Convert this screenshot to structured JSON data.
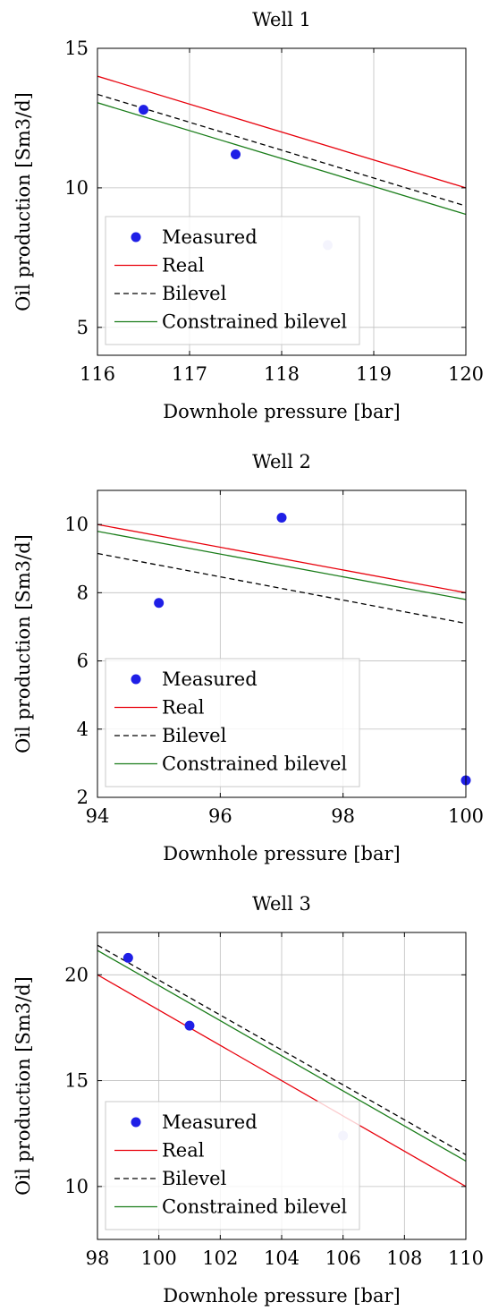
{
  "chart_data": [
    {
      "type": "line",
      "title": "Well 1",
      "xlabel": "Downhole pressure [bar]",
      "ylabel": "Oil production [Sm3/d]",
      "xlim": [
        116,
        120
      ],
      "ylim": [
        4,
        15
      ],
      "xticks": [
        116,
        117,
        118,
        119,
        120
      ],
      "yticks": [
        5,
        10,
        15
      ],
      "grid": true,
      "legend_position": "bottom-left",
      "measured": {
        "name": "Measured",
        "points": [
          {
            "x": 116.5,
            "y": 12.8,
            "faded": false
          },
          {
            "x": 117.5,
            "y": 11.2,
            "faded": false
          },
          {
            "x": 118.5,
            "y": 7.95,
            "faded": true
          }
        ]
      },
      "series": [
        {
          "name": "Real",
          "style": "solid",
          "color": "#e8000b",
          "x": [
            116,
            120
          ],
          "y": [
            14.0,
            10.0
          ]
        },
        {
          "name": "Bilevel",
          "style": "dashed",
          "color": "#000000",
          "x": [
            116,
            120
          ],
          "y": [
            13.35,
            9.35
          ]
        },
        {
          "name": "Constrained bilevel",
          "style": "solid",
          "color": "#1a7d1a",
          "x": [
            116,
            120
          ],
          "y": [
            13.05,
            9.05
          ]
        }
      ]
    },
    {
      "type": "line",
      "title": "Well 2",
      "xlabel": "Downhole pressure [bar]",
      "ylabel": "Oil production [Sm3/d]",
      "xlim": [
        94,
        100
      ],
      "ylim": [
        2,
        11
      ],
      "xticks": [
        94,
        96,
        98,
        100
      ],
      "yticks": [
        2,
        4,
        6,
        8,
        10
      ],
      "grid": true,
      "legend_position": "bottom-left",
      "measured": {
        "name": "Measured",
        "points": [
          {
            "x": 95,
            "y": 7.7,
            "faded": false
          },
          {
            "x": 97,
            "y": 10.2,
            "faded": false
          },
          {
            "x": 100,
            "y": 2.5,
            "faded": false
          }
        ]
      },
      "series": [
        {
          "name": "Real",
          "style": "solid",
          "color": "#e8000b",
          "x": [
            94,
            100
          ],
          "y": [
            10.0,
            8.0
          ]
        },
        {
          "name": "Bilevel",
          "style": "dashed",
          "color": "#000000",
          "x": [
            94,
            100
          ],
          "y": [
            9.15,
            7.1
          ]
        },
        {
          "name": "Constrained bilevel",
          "style": "solid",
          "color": "#1a7d1a",
          "x": [
            94,
            100
          ],
          "y": [
            9.8,
            7.8
          ]
        }
      ]
    },
    {
      "type": "line",
      "title": "Well 3",
      "xlabel": "Downhole pressure [bar]",
      "ylabel": "Oil production [Sm3/d]",
      "xlim": [
        98,
        110
      ],
      "ylim": [
        7.5,
        22
      ],
      "xticks": [
        98,
        100,
        102,
        104,
        106,
        108,
        110
      ],
      "yticks": [
        10,
        15,
        20
      ],
      "grid": true,
      "legend_position": "bottom-left",
      "measured": {
        "name": "Measured",
        "points": [
          {
            "x": 99,
            "y": 20.8,
            "faded": false
          },
          {
            "x": 101,
            "y": 17.6,
            "faded": false
          },
          {
            "x": 106,
            "y": 12.4,
            "faded": true
          }
        ]
      },
      "series": [
        {
          "name": "Real",
          "style": "solid",
          "color": "#e8000b",
          "x": [
            98,
            110
          ],
          "y": [
            20.0,
            10.0
          ]
        },
        {
          "name": "Bilevel",
          "style": "dashed",
          "color": "#000000",
          "x": [
            98,
            110
          ],
          "y": [
            21.4,
            11.5
          ]
        },
        {
          "name": "Constrained bilevel",
          "style": "solid",
          "color": "#1a7d1a",
          "x": [
            98,
            110
          ],
          "y": [
            21.15,
            11.2
          ]
        }
      ]
    }
  ],
  "colors": {
    "measured": "#1f1fe6",
    "measured_faded": "#c8c8f5",
    "grid": "#bfbfbf",
    "axis": "#000000"
  }
}
